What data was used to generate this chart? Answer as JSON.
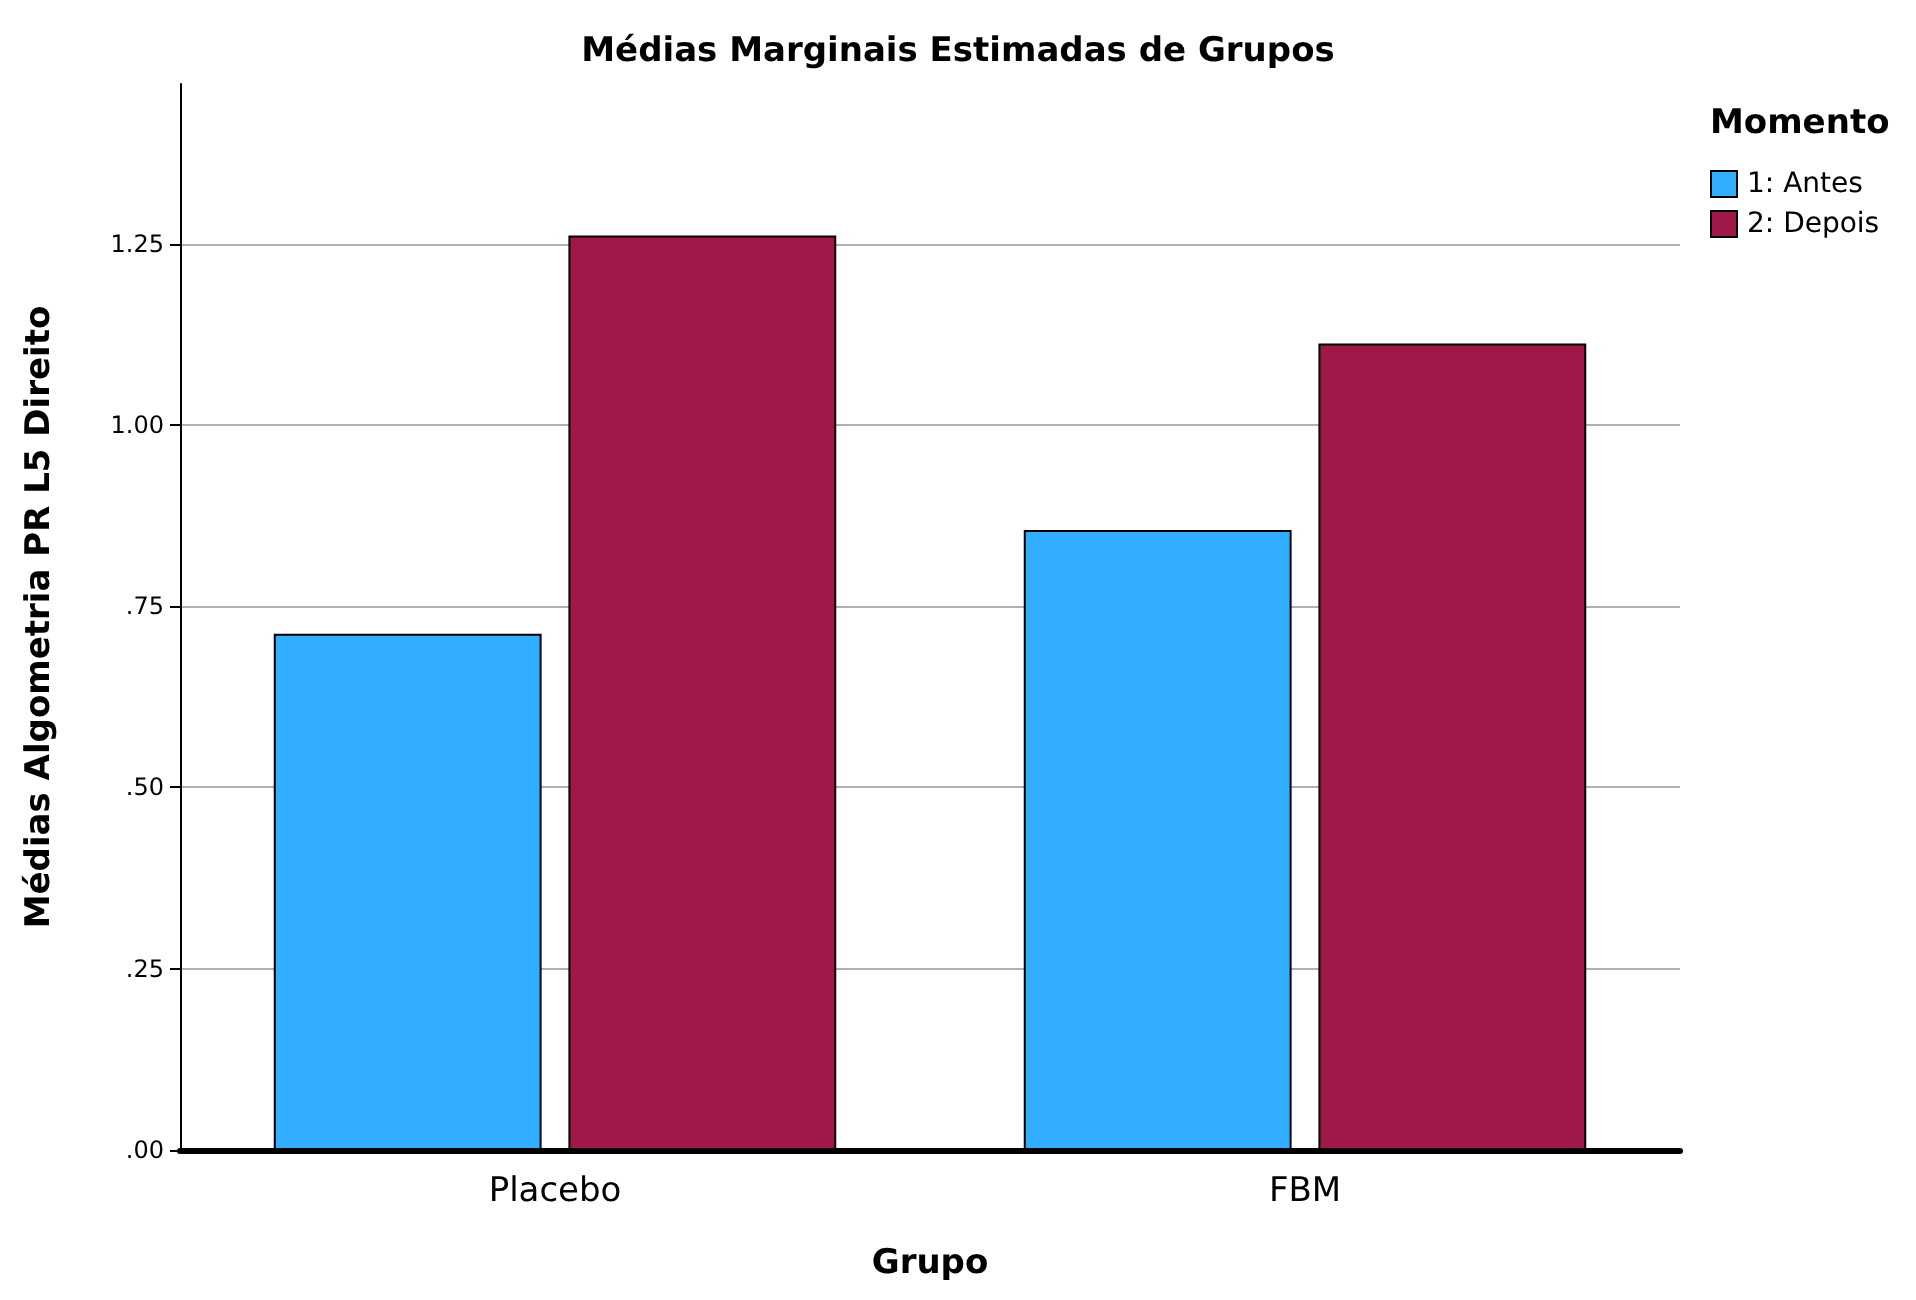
{
  "chart_data": {
    "type": "bar",
    "title": "Médias Marginais Estimadas de Grupos",
    "xlabel": "Grupo",
    "ylabel": "Médias Algometria PR L5 Direito",
    "legend_title": "Momento",
    "categories": [
      "Placebo",
      "FBM"
    ],
    "series": [
      {
        "name": "1: Antes",
        "color": "#33adff",
        "values": [
          0.712,
          0.855
        ]
      },
      {
        "name": "2: Depois",
        "color": "#a0174a",
        "values": [
          1.261,
          1.112
        ]
      }
    ],
    "ylim": [
      0,
      1.47
    ],
    "yticks": [
      {
        "value": 0,
        "label": ".00"
      },
      {
        "value": 0.25,
        "label": ".25"
      },
      {
        "value": 0.5,
        "label": ".50"
      },
      {
        "value": 0.75,
        "label": ".75"
      },
      {
        "value": 1,
        "label": "1.00"
      },
      {
        "value": 1.25,
        "label": "1.25"
      }
    ],
    "grid": "y",
    "legend": "top right"
  }
}
